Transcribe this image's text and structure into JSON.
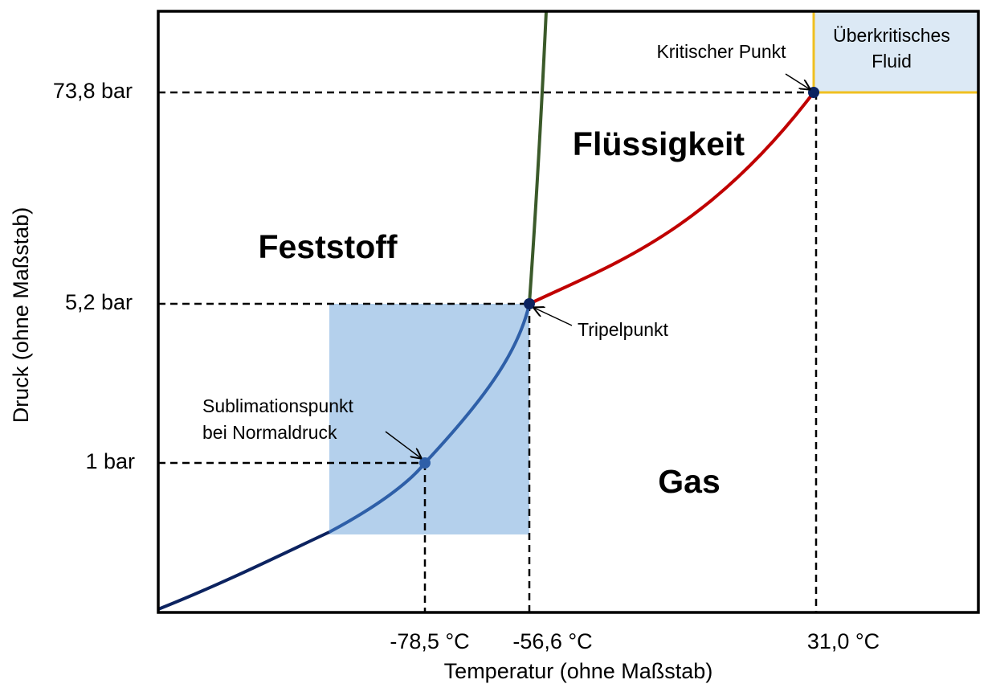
{
  "axes": {
    "x_label": "Temperatur (ohne Maßstab)",
    "y_label": "Druck (ohne Maßstab)",
    "x_ticks": [
      "-78,5 °C",
      "-56,6 °C",
      "31,0 °C"
    ],
    "y_ticks": [
      "73,8 bar",
      "5,2 bar",
      "1 bar"
    ]
  },
  "regions": {
    "solid": "Feststoff",
    "liquid": "Flüssigkeit",
    "gas": "Gas",
    "supercritical": [
      "Überkritisches",
      "Fluid"
    ]
  },
  "points": {
    "critical": "Kritischer Punkt",
    "triple": "Tripelpunkt",
    "sublimation": [
      "Sublimationspunkt",
      "bei Normaldruck"
    ]
  }
}
